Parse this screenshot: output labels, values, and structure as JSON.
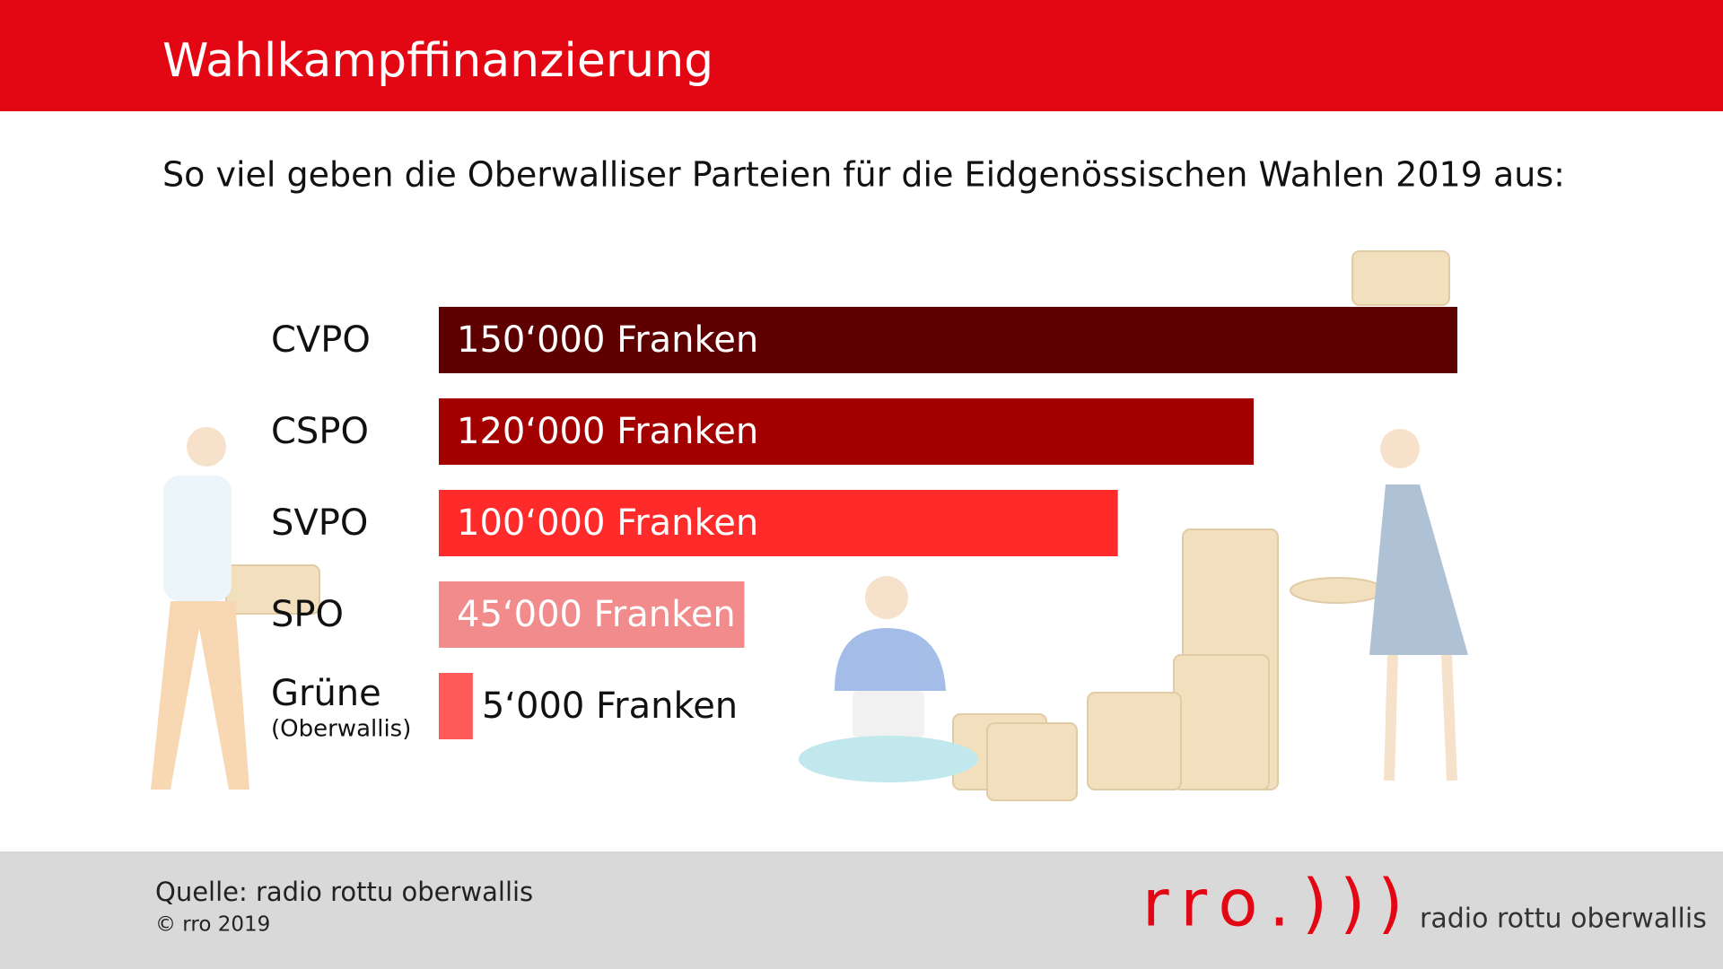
{
  "chart_data": {
    "type": "bar",
    "orientation": "horizontal",
    "title": "Wahlkampffinanzierung",
    "subtitle": "So viel geben die Oberwalliser Parteien für die Eidgenössischen Wahlen 2019 aus:",
    "categories": [
      "CVPO",
      "CSPO",
      "SVPO",
      "SPO",
      "Grüne"
    ],
    "category_notes": [
      null,
      null,
      null,
      null,
      "(Oberwallis)"
    ],
    "values": [
      150000,
      120000,
      100000,
      45000,
      5000
    ],
    "value_labels": [
      "150‘000 Franken",
      "120‘000 Franken",
      "100‘000 Franken",
      "45‘000 Franken",
      "5‘000 Franken"
    ],
    "colors": [
      "#5f0000",
      "#a30000",
      "#ff2a2a",
      "#f28b8b",
      "#ff5a5a"
    ]
  },
  "footer": {
    "source": "Quelle: radio rottu oberwallis",
    "copyright": "© rro 2019",
    "logo": "rro.)))",
    "tagline": "radio rottu oberwallis"
  }
}
